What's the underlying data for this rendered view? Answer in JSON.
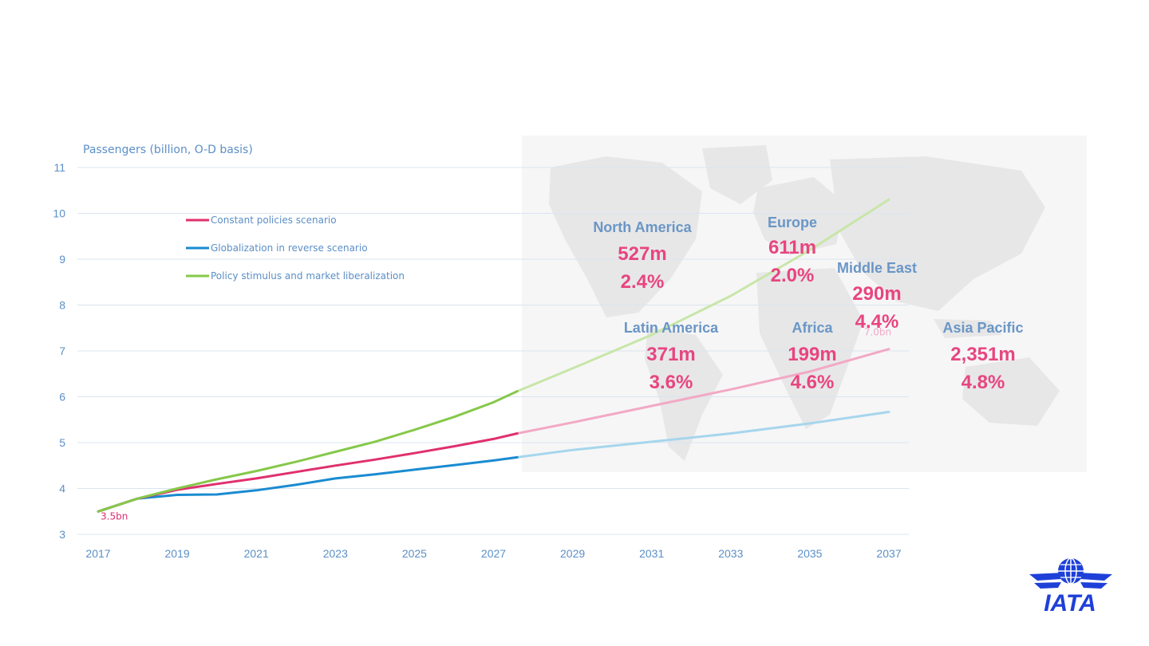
{
  "chart_data": {
    "type": "line",
    "ylabel": "Passengers (billion, O-D basis)",
    "xlabel": "",
    "ylim": [
      3,
      11
    ],
    "y_ticks": [
      3,
      4,
      5,
      6,
      7,
      8,
      9,
      10,
      11
    ],
    "xlim": [
      2017,
      2037
    ],
    "x_ticks": [
      "2017",
      "2019",
      "2021",
      "2023",
      "2025",
      "2027",
      "2029",
      "2031",
      "2033",
      "2035",
      "2037"
    ],
    "grid": true,
    "legend_placement": "upper-left inside plot",
    "forecast_start_x": 2027.6,
    "series": [
      {
        "name": "Constant policies scenario",
        "color": "#e0306e",
        "forecast_color": "#f2a9c4",
        "points": [
          [
            2017,
            3.5
          ],
          [
            2018,
            3.78
          ],
          [
            2019,
            3.97
          ],
          [
            2020,
            4.1
          ],
          [
            2021,
            4.22
          ],
          [
            2022,
            4.36
          ],
          [
            2023,
            4.5
          ],
          [
            2024,
            4.63
          ],
          [
            2025,
            4.77
          ],
          [
            2026,
            4.92
          ],
          [
            2027,
            5.08
          ],
          [
            2027.6,
            5.2
          ],
          [
            2029,
            5.44
          ],
          [
            2031,
            5.8
          ],
          [
            2033,
            6.16
          ],
          [
            2035,
            6.55
          ],
          [
            2037,
            7.04
          ]
        ]
      },
      {
        "name": "Globalization in reverse scenario",
        "color": "#1a8bd1",
        "forecast_color": "#a6d6ec",
        "points": [
          [
            2017,
            3.5
          ],
          [
            2018,
            3.78
          ],
          [
            2019,
            3.86
          ],
          [
            2020,
            3.87
          ],
          [
            2021,
            3.96
          ],
          [
            2022,
            4.08
          ],
          [
            2023,
            4.22
          ],
          [
            2024,
            4.31
          ],
          [
            2025,
            4.41
          ],
          [
            2026,
            4.51
          ],
          [
            2027,
            4.61
          ],
          [
            2027.6,
            4.68
          ],
          [
            2029,
            4.84
          ],
          [
            2031,
            5.02
          ],
          [
            2033,
            5.2
          ],
          [
            2035,
            5.42
          ],
          [
            2037,
            5.67
          ]
        ]
      },
      {
        "name": "Policy stimulus and market liberalization",
        "color": "#86c84a",
        "forecast_color": "#c8e6a8",
        "points": [
          [
            2017,
            3.5
          ],
          [
            2018,
            3.78
          ],
          [
            2019,
            4.0
          ],
          [
            2020,
            4.2
          ],
          [
            2021,
            4.38
          ],
          [
            2022,
            4.58
          ],
          [
            2023,
            4.8
          ],
          [
            2024,
            5.02
          ],
          [
            2025,
            5.28
          ],
          [
            2026,
            5.56
          ],
          [
            2027,
            5.88
          ],
          [
            2027.6,
            6.12
          ],
          [
            2029,
            6.62
          ],
          [
            2031,
            7.35
          ],
          [
            2033,
            8.2
          ],
          [
            2035,
            9.2
          ],
          [
            2037,
            10.3
          ]
        ]
      }
    ],
    "annotations": [
      {
        "text": "3.5bn",
        "x": 2017,
        "y": 3.5,
        "color": "#e0306e"
      },
      {
        "text": "7.0bn",
        "x": 2037,
        "y": 7.04,
        "color": "#f2a9c4"
      }
    ]
  },
  "regions": [
    {
      "name": "North America",
      "passengers": "527m",
      "growth": "2.4%"
    },
    {
      "name": "Europe",
      "passengers": "611m",
      "growth": "2.0%"
    },
    {
      "name": "Middle East",
      "passengers": "290m",
      "growth": "4.4%"
    },
    {
      "name": "Latin America",
      "passengers": "371m",
      "growth": "3.6%"
    },
    {
      "name": "Africa",
      "passengers": "199m",
      "growth": "4.6%"
    },
    {
      "name": "Asia Pacific",
      "passengers": "2,351m",
      "growth": "4.8%"
    }
  ],
  "logo": {
    "text": "IATA",
    "color": "#1e40d8"
  },
  "colors": {
    "axis_text": "#5b8fc7",
    "region_name": "#6a96c5",
    "region_value": "#e8457f",
    "map_land": "#e9e9ea",
    "map_bg": "#f6f6f7"
  }
}
